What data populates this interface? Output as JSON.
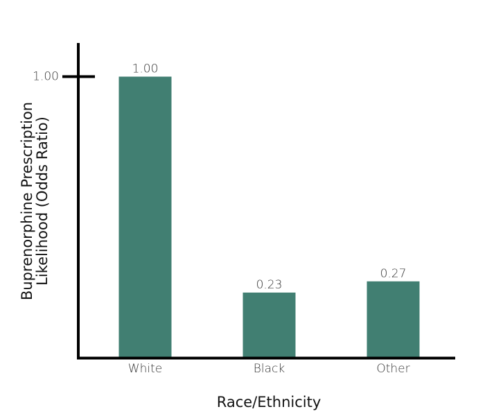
{
  "chart_data": {
    "type": "bar",
    "xlabel": "Race/Ethnicity",
    "ylabel": [
      "Buprenorphine Prescription",
      "Likelihood (Odds Ratio)"
    ],
    "categories": [
      "White",
      "Black",
      "Other"
    ],
    "values": [
      1.0,
      0.23,
      0.27
    ],
    "value_labels": [
      "1.00",
      "0.23",
      "0.27"
    ],
    "color": "#417f72",
    "ylim": [
      0,
      1.12
    ],
    "yticks": [
      {
        "value": 1,
        "label": "1.00"
      }
    ],
    "grid": false
  }
}
